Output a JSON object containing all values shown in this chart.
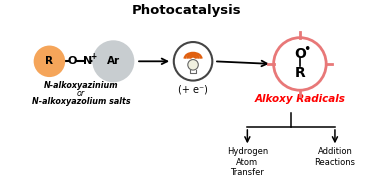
{
  "title": "Photocatalysis",
  "title_fontsize": 9.5,
  "left_label1": "N-alkoxyazinium",
  "left_label2": "or",
  "left_label3": "N-alkoxyazolium salts",
  "photocatalyst_label": "(+ e⁻)",
  "alkoxy_label": "Alkoxy Radicals",
  "branch_left": "Hydrogen\nAtom\nTransfer",
  "branch_right": "Addition\nReactions",
  "orange_ball_color": "#F5A55A",
  "gray_ball_color": "#C8CDD0",
  "photocatalyst_ring_color": "#444444",
  "photocatalyst_arc1": "#E06010",
  "photocatalyst_arc2": "#E87820",
  "target_circle_color": "#E87878",
  "alkoxy_text_color": "#FF0000",
  "bg_color": "#FFFFFF"
}
